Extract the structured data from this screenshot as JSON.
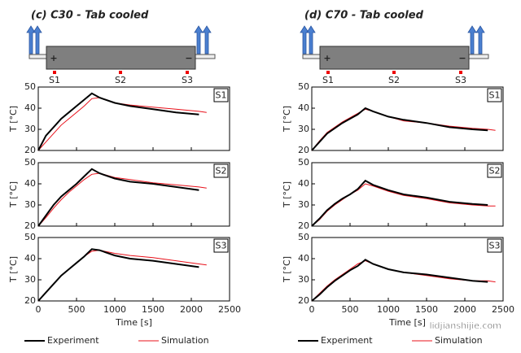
{
  "columns": [
    {
      "title": "(c) C30 - Tab cooled",
      "diagram": {
        "plus": "+",
        "minus": "−",
        "sensors": [
          "S1",
          "S2",
          "S3"
        ]
      }
    },
    {
      "title": "(d) C70 - Tab cooled",
      "diagram": {
        "plus": "+",
        "minus": "−",
        "sensors": [
          "S1",
          "S2",
          "S3"
        ]
      }
    }
  ],
  "watermark": "lidjianshijie.com",
  "chart_data": [
    {
      "type": "line",
      "label": "S1",
      "ylabel": "T [°C]",
      "xlim": [
        0,
        2500
      ],
      "xticks": [
        0,
        500,
        1000,
        1500,
        2000,
        2500
      ],
      "ylim": [
        20,
        50
      ],
      "yticks": [
        20,
        30,
        40,
        50
      ],
      "x": [
        0,
        100,
        200,
        300,
        400,
        500,
        600,
        700,
        800,
        1000,
        1200,
        1500,
        1800,
        2100,
        2200
      ],
      "series": [
        {
          "name": "Experiment",
          "color": "#000000",
          "values": [
            20,
            27,
            31,
            35,
            38,
            41,
            44,
            47,
            45,
            42.5,
            41,
            39.5,
            38,
            37,
            null
          ]
        },
        {
          "name": "Simulation",
          "color": "#e8101a",
          "values": [
            20,
            24,
            28,
            32,
            35,
            38,
            41,
            44.5,
            45,
            42.5,
            41.5,
            40.5,
            39.5,
            38.5,
            38
          ]
        }
      ]
    },
    {
      "type": "line",
      "label": "S2",
      "ylabel": "T [°C]",
      "xlim": [
        0,
        2500
      ],
      "xticks": [
        0,
        500,
        1000,
        1500,
        2000,
        2500
      ],
      "ylim": [
        20,
        50
      ],
      "yticks": [
        20,
        30,
        40,
        50
      ],
      "x": [
        0,
        100,
        200,
        300,
        400,
        500,
        600,
        700,
        800,
        1000,
        1200,
        1500,
        1800,
        2100,
        2200
      ],
      "series": [
        {
          "name": "Experiment",
          "color": "#000000",
          "values": [
            20,
            25,
            30,
            34,
            37,
            40,
            43.5,
            47,
            45,
            42.5,
            41,
            40,
            38.5,
            37,
            null
          ]
        },
        {
          "name": "Simulation",
          "color": "#e8101a",
          "values": [
            20,
            24,
            28.5,
            32.5,
            36,
            39,
            42,
            44.5,
            45,
            43,
            42,
            40.5,
            39.5,
            38.5,
            38
          ]
        }
      ]
    },
    {
      "type": "line",
      "label": "S3",
      "ylabel": "T [°C]",
      "xlabel": "Time [s]",
      "xlim": [
        0,
        2500
      ],
      "xticks": [
        0,
        500,
        1000,
        1500,
        2000,
        2500
      ],
      "ylim": [
        20,
        50
      ],
      "yticks": [
        20,
        30,
        40,
        50
      ],
      "x": [
        0,
        100,
        200,
        300,
        400,
        500,
        600,
        700,
        800,
        1000,
        1200,
        1500,
        1800,
        2100,
        2200
      ],
      "series": [
        {
          "name": "Experiment",
          "color": "#000000",
          "values": [
            20,
            24,
            28,
            32,
            35,
            38,
            41,
            44.5,
            44,
            41.5,
            40,
            39,
            37.5,
            36,
            null
          ]
        },
        {
          "name": "Simulation",
          "color": "#e8101a",
          "values": [
            20,
            24,
            28,
            32,
            35,
            38,
            41,
            43.5,
            44,
            42.5,
            41.5,
            40.5,
            39,
            37.5,
            37
          ]
        }
      ]
    },
    {
      "type": "line",
      "label": "S1",
      "ylabel": "T [°C]",
      "xlim": [
        0,
        2500
      ],
      "xticks": [
        0,
        500,
        1000,
        1500,
        2000,
        2500
      ],
      "ylim": [
        20,
        50
      ],
      "yticks": [
        20,
        30,
        40,
        50
      ],
      "x": [
        0,
        100,
        200,
        300,
        400,
        500,
        600,
        700,
        800,
        1000,
        1200,
        1500,
        1800,
        2100,
        2300,
        2400
      ],
      "series": [
        {
          "name": "Experiment",
          "color": "#000000",
          "values": [
            20,
            24,
            28,
            30.5,
            33,
            35,
            37,
            40,
            38.5,
            36,
            34.5,
            33,
            31,
            30,
            29.5,
            null
          ]
        },
        {
          "name": "Simulation",
          "color": "#e8101a",
          "values": [
            20,
            24.5,
            28.5,
            31,
            33.5,
            35.5,
            37.5,
            39.5,
            38.5,
            36,
            34,
            33,
            31.5,
            30.5,
            30,
            29.5
          ]
        }
      ]
    },
    {
      "type": "line",
      "label": "S2",
      "ylabel": "T [°C]",
      "xlim": [
        0,
        2500
      ],
      "xticks": [
        0,
        500,
        1000,
        1500,
        2000,
        2500
      ],
      "ylim": [
        20,
        50
      ],
      "yticks": [
        20,
        30,
        40,
        50
      ],
      "x": [
        0,
        100,
        200,
        300,
        400,
        500,
        600,
        700,
        800,
        1000,
        1200,
        1500,
        1800,
        2100,
        2300,
        2400
      ],
      "series": [
        {
          "name": "Experiment",
          "color": "#000000",
          "values": [
            20,
            23.5,
            27.5,
            30.5,
            33,
            35,
            37.5,
            41.5,
            39.5,
            37,
            35,
            33.5,
            31.5,
            30.5,
            30,
            null
          ]
        },
        {
          "name": "Simulation",
          "color": "#e8101a",
          "values": [
            20,
            23,
            27,
            30,
            32.5,
            35,
            37,
            40,
            39,
            36.5,
            34.5,
            33,
            31,
            30,
            29.5,
            29.5
          ]
        }
      ]
    },
    {
      "type": "line",
      "label": "S3",
      "ylabel": "T [°C]",
      "xlabel": "Time [s]",
      "xlim": [
        0,
        2500
      ],
      "xticks": [
        0,
        500,
        1000,
        1500,
        2000,
        2500
      ],
      "ylim": [
        20,
        50
      ],
      "yticks": [
        20,
        30,
        40,
        50
      ],
      "x": [
        0,
        100,
        200,
        300,
        400,
        500,
        600,
        700,
        800,
        1000,
        1200,
        1500,
        1800,
        2100,
        2300,
        2400
      ],
      "series": [
        {
          "name": "Experiment",
          "color": "#000000",
          "values": [
            20,
            23,
            26.5,
            29.5,
            32,
            34.5,
            36.5,
            39.5,
            37.5,
            35,
            33.5,
            32.5,
            31,
            29.5,
            29,
            null
          ]
        },
        {
          "name": "Simulation",
          "color": "#e8101a",
          "values": [
            20,
            23.5,
            27,
            30,
            32.5,
            35,
            37.5,
            39,
            37.5,
            35,
            33.5,
            32,
            30.5,
            29.5,
            29.5,
            29
          ]
        }
      ]
    }
  ]
}
